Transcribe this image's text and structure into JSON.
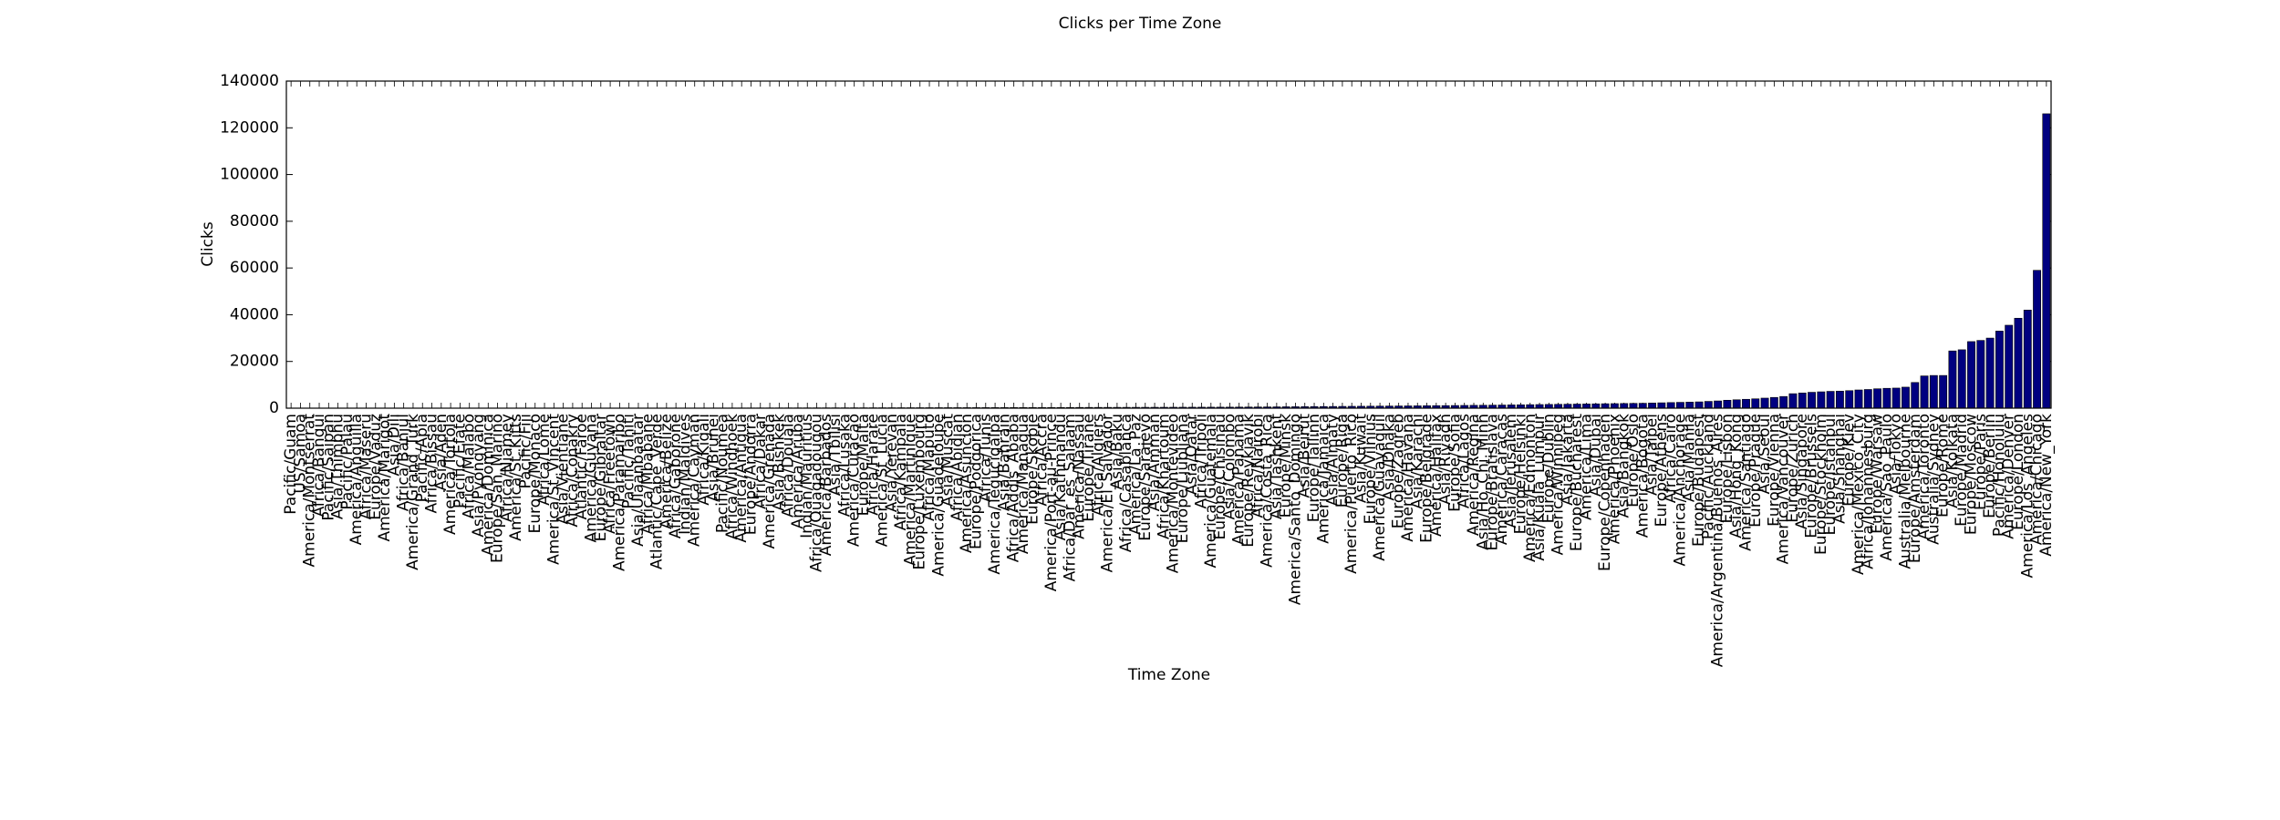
{
  "chart_data": {
    "type": "bar",
    "title": "Clicks per Time Zone",
    "xlabel": "Time Zone",
    "ylabel": "Clicks",
    "color": "#000080",
    "categories": [
      "Pacific/Guam",
      "US/Samoa",
      "America/Montserrat",
      "Africa/Bangui",
      "Pacific/Saipan",
      "Asia/Thimphu",
      "Pacific/Palau",
      "America/Anguilla",
      "Africa/Maseru",
      "Europe/Vaduz",
      "America/Marigot",
      "Asia/Dili",
      "Africa/Banjul",
      "America/Grand_Turk",
      "Pacific/Apia",
      "Africa/Bissau",
      "Asia/Aden",
      "America/Tortola",
      "Pacific/Efate",
      "Africa/Malabo",
      "Asia/Pyongyang",
      "America/Dominica",
      "Europe/San_Marino",
      "Africa/Niamey",
      "America/St_Kitts",
      "Pacific/Fiji",
      "Europe/Monaco",
      "Africa/Lome",
      "America/St_Vincent",
      "Asia/Vientiane",
      "Africa/Conakry",
      "Atlantic/Faroe",
      "America/Guyana",
      "Europe/Gibraltar",
      "Africa/Freetown",
      "America/Paramaribo",
      "Pacific/Tahiti",
      "Asia/Ulaanbaatar",
      "Africa/Mbabane",
      "Atlantic/Cape_Verde",
      "America/Belize",
      "Africa/Gaborone",
      "Indian/Maldives",
      "America/Cayman",
      "Africa/Kigali",
      "Asia/Brunei",
      "Pacific/Noumea",
      "Africa/Windhoek",
      "America/Antigua",
      "Europe/Andorra",
      "Africa/Dakar",
      "America/Grenada",
      "Asia/Bishkek",
      "Africa/Douala",
      "America/Aruba",
      "Indian/Mauritius",
      "Africa/Ouagadougou",
      "America/Barbados",
      "Asia/Tbilisi",
      "Africa/Lusaka",
      "America/Curacao",
      "Europe/Malta",
      "Africa/Harare",
      "America/St_Lucia",
      "Asia/Yerevan",
      "Africa/Kampala",
      "America/Martinique",
      "Europe/Luxembourg",
      "Africa/Maputo",
      "America/Guadeloupe",
      "Asia/Muscat",
      "Africa/Abidjan",
      "America/Asuncion",
      "Europe/Podgorica",
      "Africa/Tunis",
      "America/Tegucigalpa",
      "Asia/Bahrain",
      "Africa/Addis_Ababa",
      "America/Managua",
      "Europe/Skopje",
      "Africa/Accra",
      "America/Port-au-Prince",
      "Asia/Kathmandu",
      "Africa/Dar_es_Salaam",
      "America/Nassau",
      "Europe/Tirane",
      "Africa/Algiers",
      "America/El_Salvador",
      "Asia/Baku",
      "Africa/Casablanca",
      "America/La_Paz",
      "Europe/Sarajevo",
      "Asia/Amman",
      "Africa/Khartoum",
      "America/Montevideo",
      "Europe/Ljubljana",
      "Asia/Qatar",
      "Africa/Tripoli",
      "America/Guatemala",
      "Europe/Chisinau",
      "Asia/Colombo",
      "America/Panama",
      "Europe/Reykjavik",
      "Africa/Nairobi",
      "America/Costa_Rica",
      "Asia/Tashkent",
      "Europe/Minsk",
      "America/Santo_Domingo",
      "Asia/Beirut",
      "Europe/Tallinn",
      "America/Jamaica",
      "Asia/Almaty",
      "Europe/Riga",
      "America/Puerto_Rico",
      "Asia/Kuwait",
      "Europe/Vilnius",
      "America/Guayaquil",
      "Asia/Dhaka",
      "Europe/Zagreb",
      "America/Havana",
      "Asia/Karachi",
      "Europe/Belgrade",
      "America/Halifax",
      "Asia/Riyadh",
      "Europe/Sofia",
      "Africa/Lagos",
      "America/Regina",
      "Asia/Ho_Chi_Minh",
      "Europe/Bratislava",
      "America/Caracas",
      "Asia/Jerusalem",
      "Europe/Helsinki",
      "America/Edmonton",
      "Asia/Kuala_Lumpur",
      "Europe/Dublin",
      "America/Winnipeg",
      "Asia/Jakarta",
      "Europe/Bucharest",
      "America/Lima",
      "Asia/Dubai",
      "Europe/Copenhagen",
      "America/Phoenix",
      "Asia/Bangkok",
      "Europe/Oslo",
      "America/Bogota",
      "Asia/Taipei",
      "Europe/Athens",
      "Africa/Cairo",
      "America/Anchorage",
      "Asia/Manila",
      "Europe/Budapest",
      "Pacific/Auckland",
      "America/Argentina/Buenos_Aires",
      "Europe/Lisbon",
      "Asia/Hong_Kong",
      "America/Santiago",
      "Europe/Prague",
      "Asia/Seoul",
      "Europe/Vienna",
      "America/Vancouver",
      "Europe/Zurich",
      "Asia/Singapore",
      "Europe/Brussels",
      "Europe/Stockholm",
      "Europe/Istanbul",
      "Asia/Shanghai",
      "Europe/Kiev",
      "America/Mexico_City",
      "Africa/Johannesburg",
      "Europe/Warsaw",
      "America/Sao_Paulo",
      "Asia/Tokyo",
      "Australia/Melbourne",
      "Europe/Amsterdam",
      "America/Toronto",
      "Australia/Sydney",
      "Europe/Rome",
      "Asia/Kolkata",
      "Europe/Madrid",
      "Europe/Moscow",
      "Europe/Paris",
      "Europe/Berlin",
      "Pacific/Honolulu",
      "America/Denver",
      "Europe/London",
      "America/Los_Angeles",
      "America/Chicago",
      "America/New_York"
    ],
    "values": [
      1,
      1,
      2,
      2,
      3,
      3,
      4,
      5,
      5,
      6,
      7,
      8,
      9,
      10,
      11,
      12,
      13,
      14,
      15,
      16,
      18,
      20,
      22,
      24,
      26,
      28,
      30,
      32,
      34,
      36,
      38,
      40,
      43,
      46,
      49,
      52,
      55,
      58,
      61,
      64,
      67,
      70,
      74,
      78,
      82,
      86,
      90,
      94,
      98,
      102,
      106,
      110,
      115,
      120,
      125,
      130,
      135,
      140,
      145,
      150,
      156,
      162,
      168,
      174,
      180,
      186,
      192,
      198,
      204,
      210,
      217,
      224,
      231,
      238,
      245,
      252,
      259,
      266,
      273,
      280,
      288,
      296,
      304,
      312,
      320,
      328,
      336,
      344,
      352,
      360,
      368,
      376,
      384,
      392,
      400,
      408,
      416,
      424,
      432,
      440,
      450,
      470,
      490,
      510,
      540,
      570,
      600,
      620,
      650,
      680,
      700,
      730,
      760,
      790,
      820,
      850,
      880,
      910,
      940,
      970,
      1000,
      1050,
      1080,
      1100,
      1150,
      1180,
      1220,
      1260,
      1300,
      1350,
      1400,
      1450,
      1500,
      1550,
      1600,
      1650,
      1700,
      1750,
      1800,
      1850,
      1900,
      1950,
      2000,
      2050,
      2100,
      2200,
      2300,
      2400,
      2500,
      2600,
      2700,
      2900,
      3100,
      3400,
      3600,
      3800,
      4000,
      4300,
      4600,
      5000,
      6200,
      6500,
      6800,
      7000,
      7200,
      7300,
      7500,
      7800,
      8000,
      8300,
      8500,
      8600,
      9000,
      11000,
      13800,
      14000,
      14000,
      24500,
      25000,
      28500,
      29000,
      30000,
      33000,
      35500,
      38500,
      42000,
      59000,
      126000
    ],
    "ylim": [
      0,
      140000
    ],
    "yticks": [
      0,
      20000,
      40000,
      60000,
      80000,
      100000,
      120000,
      140000
    ]
  }
}
